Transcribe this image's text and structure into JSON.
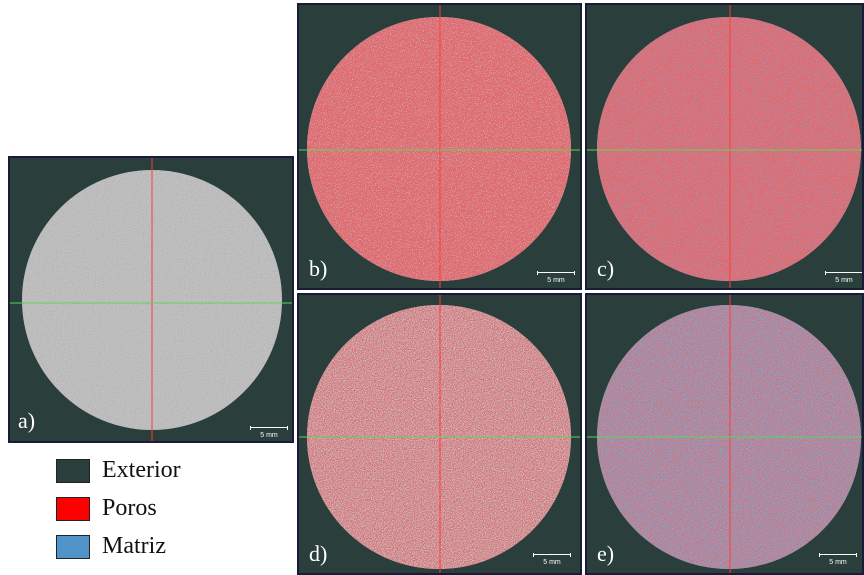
{
  "panels": [
    {
      "id": "a",
      "label": "a)",
      "scale": "5 mm",
      "overlay": "none"
    },
    {
      "id": "b",
      "label": "b)",
      "scale": "5 mm",
      "overlay": "pores-light"
    },
    {
      "id": "c",
      "label": "c)",
      "scale": "5 mm",
      "overlay": "matrix-light"
    },
    {
      "id": "d",
      "label": "d)",
      "scale": "5 mm",
      "overlay": "pores-heavy"
    },
    {
      "id": "e",
      "label": "e)",
      "scale": "5 mm",
      "overlay": "matrix-heavy"
    }
  ],
  "legend": [
    {
      "label": "Exterior",
      "color": "#2a3e3b"
    },
    {
      "label": "Poros",
      "color": "#ff0000"
    },
    {
      "label": "Matriz",
      "color": "#4f93c8"
    }
  ],
  "colors": {
    "background": "#2a3e3b",
    "sample_gray": "#bdbdbd",
    "crosshair_vertical": "#ff3b3b",
    "crosshair_horizontal": "#5fd35f",
    "pores": "#c0262b",
    "matrix": "#62aee0"
  }
}
